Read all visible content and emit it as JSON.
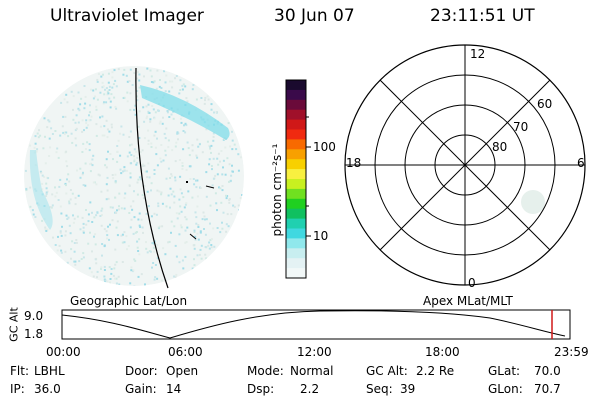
{
  "header": {
    "instrument": "Ultraviolet Imager",
    "date": "30 Jun 07",
    "time": "23:11:51 UT"
  },
  "colorbar": {
    "unit_label": "photon cm⁻²s⁻¹",
    "ticks": [
      "100",
      "10"
    ],
    "colors": [
      "#1a0a2e",
      "#3a0a4a",
      "#6a0a3a",
      "#a0102a",
      "#d01818",
      "#f02a10",
      "#f86a00",
      "#f8a000",
      "#f8d000",
      "#f8f040",
      "#c8f020",
      "#70e020",
      "#20d020",
      "#10c060",
      "#20d0b0",
      "#40d8e0",
      "#90e8ec",
      "#c8eef0",
      "#e4f2f4",
      "#f2f8f8"
    ]
  },
  "geo_panel": {
    "label": "Geographic Lat/Lon"
  },
  "polar_panel": {
    "label": "Apex MLat/MLT",
    "mlt_labels": {
      "top": "12",
      "left": "18",
      "right": "6",
      "bottom": "0"
    },
    "lat_labels": [
      "60",
      "70",
      "80"
    ]
  },
  "orbit_plot": {
    "y_axis_title": "GC Alt",
    "y_ticks": [
      "9.0",
      "1.8"
    ],
    "x_ticks": [
      "00:00",
      "06:00",
      "12:00",
      "18:00",
      "23:59"
    ]
  },
  "info": {
    "flt_label": "Flt:",
    "flt_value": "LBHL",
    "ip_label": "IP:",
    "ip_value": "36.0",
    "door_label": "Door:",
    "door_value": "Open",
    "gain_label": "Gain:",
    "gain_value": "14",
    "mode_label": "Mode:",
    "mode_value": "Normal",
    "dsp_label": "Dsp:",
    "dsp_value": "2.2",
    "gcalt_label": "GC Alt:",
    "gcalt_value": "2.2 Re",
    "seq_label": "Seq:",
    "seq_value": "39",
    "glat_label": "GLat:",
    "glat_value": "70.0",
    "glon_label": "GLon:",
    "glon_value": "70.7"
  }
}
